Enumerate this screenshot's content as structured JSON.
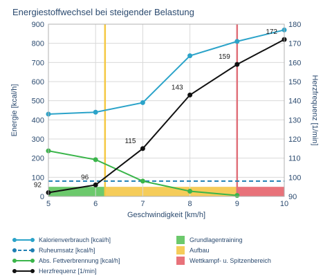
{
  "chart_data": {
    "type": "line",
    "title": "Energiestoffwechsel bei steigender Belastung",
    "xlabel": "Geschwindigkeit [km/h]",
    "ylabel_left": "Energie [kcal/h]",
    "ylabel_right": "Herzfrequenz [1/min]",
    "xlim": [
      5,
      10
    ],
    "ylim_left": [
      0,
      900
    ],
    "ylim_right": [
      90,
      180
    ],
    "x_ticks": [
      "5",
      "6",
      "7",
      "8",
      "9",
      "10"
    ],
    "y_left_ticks": [
      "0",
      "100",
      "200",
      "300",
      "400",
      "500",
      "600",
      "700",
      "800",
      "900"
    ],
    "y_right_ticks": [
      "90",
      "100",
      "110",
      "120",
      "130",
      "140",
      "150",
      "160",
      "170",
      "180"
    ],
    "grid": true,
    "series": [
      {
        "name": "Kalorienverbrauch [kcal/h]",
        "axis": "left",
        "color": "#2ba3c9",
        "style": "solid",
        "x": [
          5,
          6,
          7,
          8,
          9,
          10
        ],
        "values": [
          430,
          440,
          490,
          735,
          810,
          870
        ]
      },
      {
        "name": "Ruheumsatz [kcal/h]",
        "axis": "left",
        "color": "#1f7fb3",
        "style": "dashed",
        "x": [
          5,
          10
        ],
        "values": [
          80,
          80
        ]
      },
      {
        "name": "Abs. Fettverbrennung [kcal/h]",
        "axis": "left",
        "color": "#3ab54a",
        "style": "solid",
        "x": [
          5,
          6,
          7,
          8,
          9
        ],
        "values": [
          238,
          192,
          80,
          27,
          5
        ]
      },
      {
        "name": "Herzfrequenz [1/min]",
        "axis": "right",
        "color": "#111111",
        "style": "solid",
        "x": [
          5,
          6,
          7,
          8,
          9,
          10
        ],
        "values": [
          92,
          96,
          115,
          143,
          159,
          172
        ],
        "labels": [
          "92",
          "96",
          "115",
          "143",
          "159",
          "172"
        ]
      }
    ],
    "zones": [
      {
        "name": "Grundlagentraining",
        "color": "#6cc96c",
        "from": 5,
        "to": 6.2
      },
      {
        "name": "Aufbau",
        "color": "#f5cc5a",
        "from": 6.2,
        "to": 9
      },
      {
        "name": "Wettkampf- u. Spitzenbereich",
        "color": "#e8727a",
        "from": 9,
        "to": 10
      }
    ],
    "vertical_lines": [
      {
        "x": 6.2,
        "color": "#f5c842"
      },
      {
        "x": 9,
        "color": "#e0707a"
      }
    ],
    "zone_band_top": 50,
    "legend_position": "bottom"
  }
}
